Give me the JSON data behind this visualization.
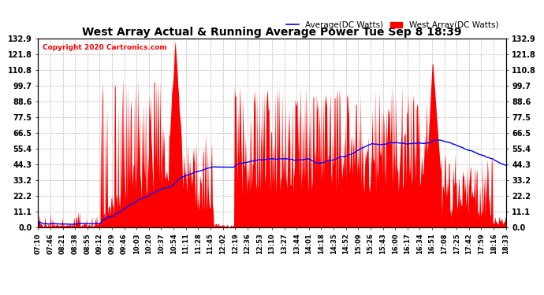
{
  "title": "West Array Actual & Running Average Power Tue Sep 8 18:39",
  "copyright": "Copyright 2020 Cartronics.com",
  "legend_avg": "Average(DC Watts)",
  "legend_west": "West Array(DC Watts)",
  "ylim": [
    0.0,
    132.9
  ],
  "yticks": [
    0.0,
    11.1,
    22.2,
    33.2,
    44.3,
    55.4,
    66.5,
    77.5,
    88.6,
    99.7,
    110.8,
    121.8,
    132.9
  ],
  "bg_color": "#ffffff",
  "grid_color": "#aaaaaa",
  "bar_color": "#ff0000",
  "avg_color": "#0000ff",
  "title_color": "#000000",
  "copyright_color": "#ff0000",
  "xtick_labels": [
    "07:10",
    "07:46",
    "08:21",
    "08:38",
    "08:55",
    "09:12",
    "09:29",
    "09:46",
    "10:03",
    "10:20",
    "10:37",
    "10:54",
    "11:11",
    "11:28",
    "11:45",
    "12:02",
    "12:19",
    "12:36",
    "12:53",
    "13:10",
    "13:27",
    "13:44",
    "14:01",
    "14:18",
    "14:35",
    "14:52",
    "15:09",
    "15:26",
    "15:43",
    "16:00",
    "16:17",
    "16:34",
    "16:51",
    "17:08",
    "17:25",
    "17:42",
    "17:59",
    "18:16",
    "18:33"
  ]
}
